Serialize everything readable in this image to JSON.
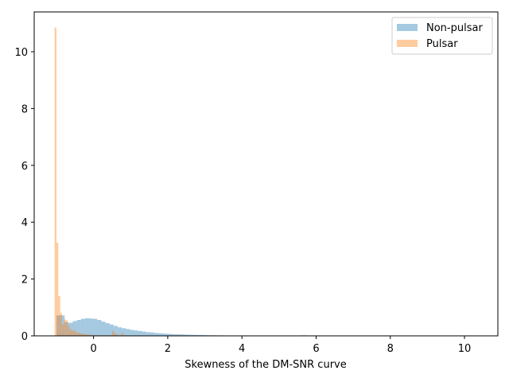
{
  "chart_data": {
    "type": "histogram",
    "title": "",
    "xlabel": "Skewness of the DM-SNR curve",
    "ylabel": "",
    "xlim": [
      -1.6,
      10.9
    ],
    "ylim": [
      0,
      11.4
    ],
    "xticks": [
      0,
      2,
      4,
      6,
      8,
      10
    ],
    "yticks": [
      0,
      2,
      4,
      6,
      8,
      10
    ],
    "grid": false,
    "legend_position": "top-right",
    "series": [
      {
        "name": "Non-pulsar",
        "color": "#1f77b4",
        "alpha": 0.4,
        "bin_start": -1.0,
        "bin_width": 0.11,
        "values": [
          0.72,
          0.72,
          0.48,
          0.46,
          0.52,
          0.56,
          0.6,
          0.62,
          0.61,
          0.6,
          0.56,
          0.5,
          0.45,
          0.4,
          0.35,
          0.3,
          0.27,
          0.24,
          0.21,
          0.19,
          0.17,
          0.15,
          0.13,
          0.12,
          0.1,
          0.09,
          0.08,
          0.07,
          0.06,
          0.055,
          0.05,
          0.045,
          0.04,
          0.035,
          0.03,
          0.03,
          0.025,
          0.022,
          0.02,
          0.018,
          0.016,
          0.014,
          0.012,
          0.011,
          0.01,
          0.009,
          0.008,
          0.007,
          0.006,
          0.005,
          0.005,
          0.004,
          0.004,
          0.003,
          0.003,
          0.003,
          0.003,
          0.002,
          0.002,
          0.002,
          0.02,
          0.002,
          0.002,
          0.001,
          0.001,
          0.001,
          0.001,
          0.001,
          0.001,
          0.001,
          0.001,
          0.001,
          0.001,
          0.001,
          0.001,
          0.001,
          0.001,
          0.001,
          0.001,
          0.001,
          0.001,
          0.001,
          0.001,
          0.001,
          0.001,
          0.001,
          0.001,
          0.001,
          0.001,
          0.001,
          0.001,
          0.001,
          0.001,
          0.001,
          0.001,
          0.001,
          0.001,
          0.001,
          0.001,
          0.001
        ]
      },
      {
        "name": "Pulsar",
        "color": "#ff7f0e",
        "alpha": 0.4,
        "bin_start": -1.05,
        "bin_width": 0.05,
        "values": [
          10.85,
          3.28,
          1.4,
          0.8,
          0.4,
          0.58,
          0.55,
          0.38,
          0.25,
          0.18,
          0.2,
          0.15,
          0.12,
          0.1,
          0.08,
          0.07,
          0.06,
          0.05,
          0.04,
          0.03,
          0.03,
          0.02,
          0.02,
          0.02,
          0.02,
          0.02,
          0.02,
          0.02,
          0.02,
          0.02,
          0.02,
          0.18,
          0.1,
          0.05,
          0.02,
          0.02,
          0.1,
          0.02,
          0.02,
          0.02,
          0.01,
          0.01,
          0.01,
          0.01,
          0.01,
          0.01,
          0.01,
          0.01,
          0.01,
          0.01,
          0.01,
          0.01,
          0.01,
          0.01,
          0.01,
          0.01,
          0.01,
          0.01,
          0.01,
          0.01,
          0.01,
          0.01,
          0.01,
          0.01,
          0.01,
          0.01,
          0.01,
          0.01,
          0.01,
          0.01
        ]
      }
    ]
  }
}
